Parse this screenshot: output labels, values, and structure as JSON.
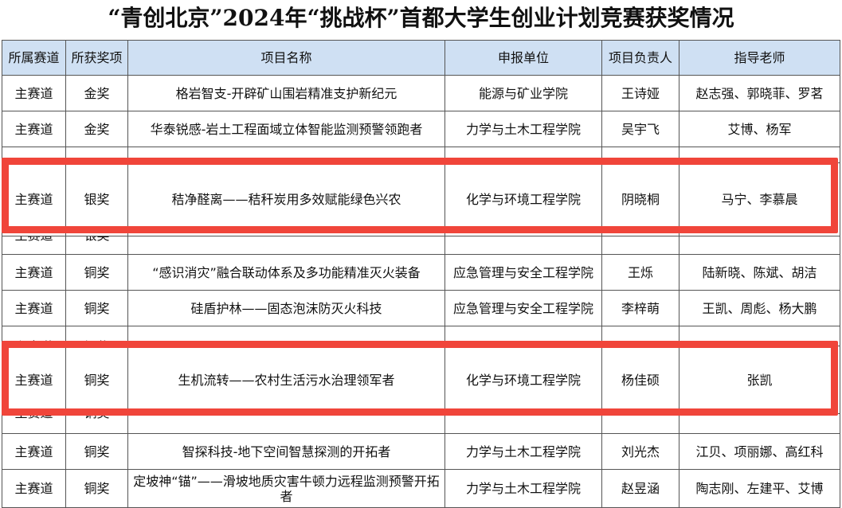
{
  "title": "“青创北京”2024年“挑战杯”首都大学生创业计划竞赛获奖情况",
  "table": {
    "headers": [
      "所属赛道",
      "所获奖项",
      "项目名称",
      "申报单位",
      "项目负责人",
      "指导老师"
    ],
    "rows": [
      [
        "主赛道",
        "金奖",
        "格岩智支-开辟矿山围岩精准支护新纪元",
        "能源与矿业学院",
        "王诗娅",
        "赵志强、郭晓菲、罗茗"
      ],
      [
        "主赛道",
        "金奖",
        "华泰锐感-岩土工程面域立体智能监测预警领跑者",
        "力学与土木工程学院",
        "吴宇飞",
        "艾博、杨军"
      ],
      [
        "主赛道",
        "银奖",
        "秸净醛离——秸秆炭用多效赋能绿色兴农",
        "化学与环境工程学院",
        "阴晓桐",
        "马宁、李慕晨"
      ],
      [
        "主赛道",
        "银奖"
      ],
      [
        "主赛道",
        "铜奖",
        "“感识消灾”融合联动体系及多功能精准灭火装备",
        "应急管理与安全工程学院",
        "王烁",
        "陆新晓、陈斌、胡洁"
      ],
      [
        "主赛道",
        "铜奖",
        "硅盾护林——固态泡沫防灭火科技",
        "应急管理与安全工程学院",
        "李梓萌",
        "王凯、周彪、杨大鹏"
      ],
      [
        "主赛道",
        "铜奖"
      ],
      [
        "主赛道",
        "铜奖",
        "生机流转——农村生活污水治理领军者",
        "化学与环境工程学院",
        "杨佳硕",
        "张凯"
      ],
      [
        "主赛道",
        "铜奖"
      ],
      [
        "主赛道",
        "铜奖",
        "智探科技-地下空间智慧探测的开拓者",
        "力学与土木工程学院",
        "刘光杰",
        "江贝、项丽娜、高红科"
      ],
      [
        "主赛道",
        "铜奖",
        "定坡神“锚”——滑坡地质灾害牛顿力远程监测预警开拓者",
        "力学与土木工程学院",
        "赵昱涵",
        "陶志刚、左建平、艾博"
      ]
    ]
  }
}
